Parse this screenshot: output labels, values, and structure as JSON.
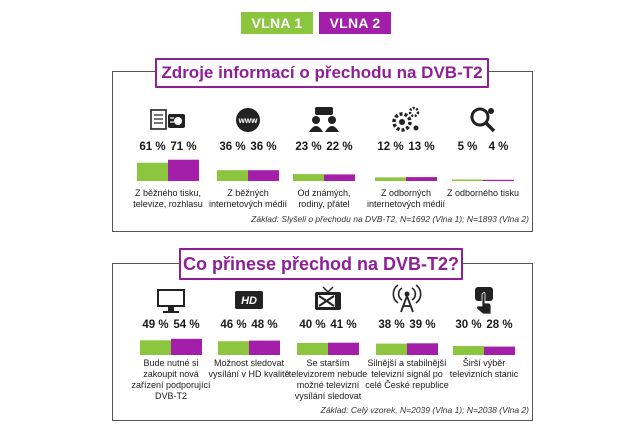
{
  "legend": [
    {
      "label": "VLNA 1",
      "color": "#8cc63f"
    },
    {
      "label": "VLNA 2",
      "color": "#a31ea9"
    }
  ],
  "colors": {
    "wave1": "#8cc63f",
    "wave2": "#a31ea9",
    "title": "#8f1f96"
  },
  "chart_data": [
    {
      "type": "bar",
      "title": "Zdroje informací o přechodu na DVB-T2",
      "note": "Základ: Slyšeli o přechodu na DVB-T2, N=1692 (Vlna 1); N=1893 (Vlna 2)",
      "series": [
        {
          "name": "VLNA 1",
          "values": [
            61,
            36,
            23,
            12,
            5
          ]
        },
        {
          "name": "VLNA 2",
          "values": [
            71,
            36,
            22,
            13,
            4
          ]
        }
      ],
      "categories": [
        {
          "lines": [
            "Z běžného tisku,",
            "televize, rozhlasu"
          ],
          "icon": "newspaper-radio-icon",
          "labels": [
            "61 %",
            "71 %"
          ]
        },
        {
          "lines": [
            "Z běžných",
            "internetových médií"
          ],
          "icon": "www-globe-icon",
          "labels": [
            "36 %",
            "36 %"
          ]
        },
        {
          "lines": [
            "Od známých,",
            "rodiny, přátel"
          ],
          "icon": "people-chat-icon",
          "labels": [
            "23 %",
            "22 %"
          ]
        },
        {
          "lines": [
            "Z odborných",
            "internetových médií"
          ],
          "icon": "gears-network-icon",
          "labels": [
            "12 %",
            "13 %"
          ]
        },
        {
          "lines": [
            "Z odborného tisku"
          ],
          "icon": "magnifier-gear-icon",
          "labels": [
            "5 %",
            "4 %"
          ]
        }
      ]
    },
    {
      "type": "bar",
      "title": "Co přinese přechod na DVB-T2?",
      "note": "Základ: Celý vzorek, N=2039 (Vlna 1); N=2038 (Vlna 2)",
      "series": [
        {
          "name": "VLNA 1",
          "values": [
            49,
            46,
            40,
            38,
            30
          ]
        },
        {
          "name": "VLNA 2",
          "values": [
            54,
            48,
            41,
            39,
            28
          ]
        }
      ],
      "categories": [
        {
          "lines": [
            "Bude nutné si",
            "zakoupit nová",
            "zařízení podporující",
            "DVB-T2"
          ],
          "icon": "monitor-icon",
          "labels": [
            "49 %",
            "54 %"
          ]
        },
        {
          "lines": [
            "Možnost sledovat",
            "vysílání v HD kvalitě"
          ],
          "icon": "hd-icon",
          "labels": [
            "46 %",
            "48 %"
          ]
        },
        {
          "lines": [
            "Se starším",
            "televizorem nebude",
            "možné televizní",
            "vysílání sledovat"
          ],
          "icon": "broken-tv-icon",
          "labels": [
            "40 %",
            "41 %"
          ]
        },
        {
          "lines": [
            "Silnější a stabilnější",
            "televizní signál po",
            "celé České republice"
          ],
          "icon": "antenna-signal-icon",
          "labels": [
            "38 %",
            "39 %"
          ]
        },
        {
          "lines": [
            "Širší výběr",
            "televizních stanic"
          ],
          "icon": "hand-tap-icon",
          "labels": [
            "30 %",
            "28 %"
          ]
        }
      ]
    }
  ]
}
